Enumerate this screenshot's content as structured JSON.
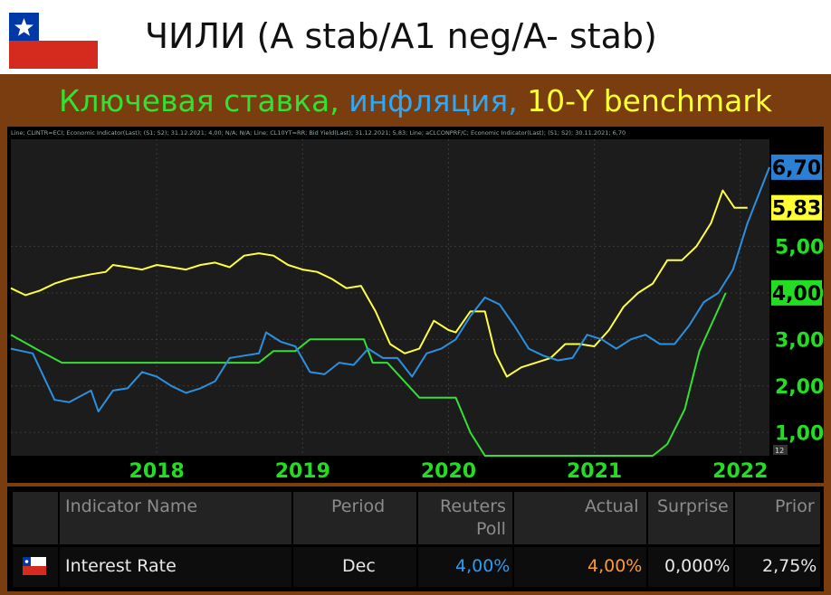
{
  "header": {
    "title": "ЧИЛИ (A stab/A1 neg/A- stab)",
    "subtitle_parts": [
      {
        "text": "Ключевая ставка, ",
        "color": "#33e033"
      },
      {
        "text": "инфляция, ",
        "color": "#2ea8f5"
      },
      {
        "text": "10-Y benchmark",
        "color": "#ffff33"
      }
    ]
  },
  "legend_text": "Line; CLINTR=ECI; Economic Indicator(Last); (S1; S2); 31.12.2021; 4,00; N/A; N/A; Line; CL10YT=RR; Bid Yield(Last); 31.12.2021; 5,83; Line; aCLCONPRF/C; Economic Indicator(Last); (S1; S2); 30.11.2021; 6,70",
  "chart_data": {
    "type": "line",
    "title": "",
    "xlabel": "",
    "ylabel": "",
    "x_ticks": [
      "2018",
      "2019",
      "2020",
      "2021",
      "2022"
    ],
    "y_ticks": [
      "1,00",
      "2,00",
      "3,00",
      "4,00",
      "5,00"
    ],
    "ylim": [
      0.5,
      7.3
    ],
    "xlim": [
      2017.0,
      2022.2
    ],
    "axis_small_label": "12",
    "end_labels": [
      {
        "text": "6,70",
        "bg": "#2b7fd4",
        "value": 6.7
      },
      {
        "text": "5,83",
        "bg": "#ffff33",
        "value": 5.83
      },
      {
        "text": "4,00",
        "bg": "#22dd22",
        "value": 4.0
      }
    ],
    "series": [
      {
        "color": "#33e033",
        "points": [
          [
            2017.0,
            3.1
          ],
          [
            2017.2,
            2.75
          ],
          [
            2017.35,
            2.5
          ],
          [
            2017.7,
            2.5
          ],
          [
            2018.0,
            2.5
          ],
          [
            2018.5,
            2.5
          ],
          [
            2018.7,
            2.5
          ],
          [
            2018.8,
            2.75
          ],
          [
            2018.95,
            2.75
          ],
          [
            2019.05,
            3.0
          ],
          [
            2019.35,
            3.0
          ],
          [
            2019.42,
            3.0
          ],
          [
            2019.48,
            2.5
          ],
          [
            2019.58,
            2.5
          ],
          [
            2019.8,
            1.75
          ],
          [
            2019.95,
            1.75
          ],
          [
            2020.05,
            1.75
          ],
          [
            2020.15,
            1.0
          ],
          [
            2020.25,
            0.5
          ],
          [
            2020.5,
            0.5
          ],
          [
            2021.0,
            0.5
          ],
          [
            2021.4,
            0.5
          ],
          [
            2021.5,
            0.75
          ],
          [
            2021.62,
            1.5
          ],
          [
            2021.72,
            2.75
          ],
          [
            2021.9,
            4.0
          ]
        ]
      },
      {
        "color": "#ffff44",
        "points": [
          [
            2017.0,
            4.1
          ],
          [
            2017.1,
            3.95
          ],
          [
            2017.2,
            4.05
          ],
          [
            2017.3,
            4.2
          ],
          [
            2017.4,
            4.3
          ],
          [
            2017.55,
            4.4
          ],
          [
            2017.65,
            4.45
          ],
          [
            2017.7,
            4.6
          ],
          [
            2017.8,
            4.55
          ],
          [
            2017.9,
            4.5
          ],
          [
            2018.0,
            4.6
          ],
          [
            2018.1,
            4.55
          ],
          [
            2018.2,
            4.5
          ],
          [
            2018.3,
            4.6
          ],
          [
            2018.4,
            4.65
          ],
          [
            2018.5,
            4.55
          ],
          [
            2018.6,
            4.8
          ],
          [
            2018.7,
            4.85
          ],
          [
            2018.8,
            4.8
          ],
          [
            2018.9,
            4.6
          ],
          [
            2019.0,
            4.5
          ],
          [
            2019.1,
            4.45
          ],
          [
            2019.2,
            4.3
          ],
          [
            2019.3,
            4.1
          ],
          [
            2019.4,
            4.15
          ],
          [
            2019.5,
            3.6
          ],
          [
            2019.6,
            2.9
          ],
          [
            2019.7,
            2.7
          ],
          [
            2019.8,
            2.8
          ],
          [
            2019.9,
            3.4
          ],
          [
            2020.0,
            3.2
          ],
          [
            2020.05,
            3.15
          ],
          [
            2020.15,
            3.6
          ],
          [
            2020.25,
            3.6
          ],
          [
            2020.32,
            2.7
          ],
          [
            2020.4,
            2.2
          ],
          [
            2020.5,
            2.4
          ],
          [
            2020.6,
            2.5
          ],
          [
            2020.7,
            2.6
          ],
          [
            2020.8,
            2.9
          ],
          [
            2020.9,
            2.9
          ],
          [
            2021.0,
            2.85
          ],
          [
            2021.1,
            3.2
          ],
          [
            2021.2,
            3.7
          ],
          [
            2021.3,
            4.0
          ],
          [
            2021.4,
            4.2
          ],
          [
            2021.5,
            4.7
          ],
          [
            2021.6,
            4.7
          ],
          [
            2021.7,
            5.0
          ],
          [
            2021.8,
            5.5
          ],
          [
            2021.88,
            6.2
          ],
          [
            2021.96,
            5.83
          ],
          [
            2022.05,
            5.83
          ]
        ]
      },
      {
        "color": "#2b90e0",
        "points": [
          [
            2017.0,
            2.8
          ],
          [
            2017.15,
            2.7
          ],
          [
            2017.3,
            1.7
          ],
          [
            2017.4,
            1.65
          ],
          [
            2017.55,
            1.9
          ],
          [
            2017.6,
            1.45
          ],
          [
            2017.7,
            1.9
          ],
          [
            2017.8,
            1.95
          ],
          [
            2017.9,
            2.3
          ],
          [
            2018.0,
            2.2
          ],
          [
            2018.1,
            2.0
          ],
          [
            2018.2,
            1.85
          ],
          [
            2018.3,
            1.95
          ],
          [
            2018.4,
            2.1
          ],
          [
            2018.5,
            2.6
          ],
          [
            2018.6,
            2.65
          ],
          [
            2018.7,
            2.7
          ],
          [
            2018.75,
            3.15
          ],
          [
            2018.85,
            2.95
          ],
          [
            2018.95,
            2.85
          ],
          [
            2019.05,
            2.3
          ],
          [
            2019.15,
            2.25
          ],
          [
            2019.25,
            2.5
          ],
          [
            2019.35,
            2.45
          ],
          [
            2019.45,
            2.8
          ],
          [
            2019.55,
            2.6
          ],
          [
            2019.65,
            2.6
          ],
          [
            2019.75,
            2.2
          ],
          [
            2019.85,
            2.7
          ],
          [
            2019.95,
            2.8
          ],
          [
            2020.05,
            3.0
          ],
          [
            2020.15,
            3.5
          ],
          [
            2020.25,
            3.9
          ],
          [
            2020.35,
            3.75
          ],
          [
            2020.45,
            3.3
          ],
          [
            2020.55,
            2.8
          ],
          [
            2020.65,
            2.65
          ],
          [
            2020.75,
            2.55
          ],
          [
            2020.85,
            2.6
          ],
          [
            2020.95,
            3.1
          ],
          [
            2021.05,
            3.0
          ],
          [
            2021.15,
            2.8
          ],
          [
            2021.25,
            3.0
          ],
          [
            2021.35,
            3.1
          ],
          [
            2021.45,
            2.9
          ],
          [
            2021.55,
            2.9
          ],
          [
            2021.65,
            3.3
          ],
          [
            2021.75,
            3.8
          ],
          [
            2021.85,
            4.0
          ],
          [
            2021.95,
            4.5
          ],
          [
            2022.05,
            5.5
          ],
          [
            2022.2,
            6.7
          ]
        ]
      }
    ]
  },
  "table": {
    "headers": {
      "name": "Indicator Name",
      "period": "Period",
      "poll_line1": "Reuters",
      "poll_line2": "Poll",
      "actual": "Actual",
      "surprise": "Surprise",
      "prior": "Prior"
    },
    "row": {
      "name": "Interest Rate",
      "period": "Dec",
      "poll": "4,00%",
      "actual": "4,00%",
      "surprise": "0,000%",
      "prior": "2,75%",
      "poll_color": "#2a9df4",
      "actual_color": "#ff9a2e"
    }
  }
}
